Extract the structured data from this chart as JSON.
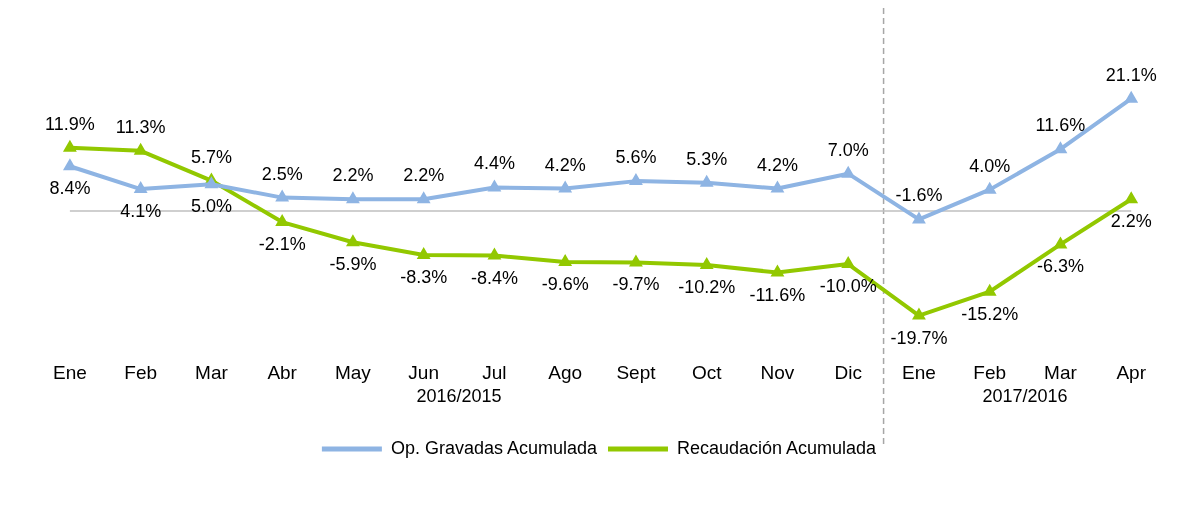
{
  "chart_data": {
    "type": "line",
    "categories": [
      "Ene",
      "Feb",
      "Mar",
      "Abr",
      "May",
      "Jun",
      "Jul",
      "Ago",
      "Sept",
      "Oct",
      "Nov",
      "Dic",
      "Ene",
      "Feb",
      "Mar",
      "Apr"
    ],
    "series": [
      {
        "name": "Op. Gravadas Acumulada",
        "color": "#8eb4e3",
        "values": [
          8.4,
          4.1,
          5.0,
          2.5,
          2.2,
          2.2,
          4.4,
          4.2,
          5.6,
          5.3,
          4.2,
          7.0,
          -1.6,
          4.0,
          11.6,
          21.1
        ],
        "value_labels": [
          "8.4%",
          "4.1%",
          "5.0%",
          "2.5%",
          "2.2%",
          "2.2%",
          "4.4%",
          "4.2%",
          "5.6%",
          "5.3%",
          "4.2%",
          "7.0%",
          "-1.6%",
          "4.0%",
          "11.6%",
          "21.1%"
        ]
      },
      {
        "name": "Recaudación Acumulada",
        "color": "#92c800",
        "values": [
          11.9,
          11.3,
          5.7,
          -2.1,
          -5.9,
          -8.3,
          -8.4,
          -9.6,
          -9.7,
          -10.2,
          -11.6,
          -10.0,
          -19.7,
          -15.2,
          -6.3,
          2.2
        ],
        "value_labels": [
          "11.9%",
          "11.3%",
          "5.7%",
          "-2.1%",
          "-5.9%",
          "-8.3%",
          "-8.4%",
          "-9.6%",
          "-9.7%",
          "-10.2%",
          "-11.6%",
          "-10.0%",
          "-19.7%",
          "-15.2%",
          "-6.3%",
          "2.2%"
        ]
      }
    ],
    "marker": "triangle",
    "line_style": "solid",
    "legend": "bottom",
    "grid": false,
    "ref_lines": [
      {
        "axis": "y",
        "value": 0,
        "color": "#bfbfbf",
        "line_style": "solid"
      }
    ],
    "annotations": [
      "2016/2015",
      "2017/2016"
    ]
  }
}
